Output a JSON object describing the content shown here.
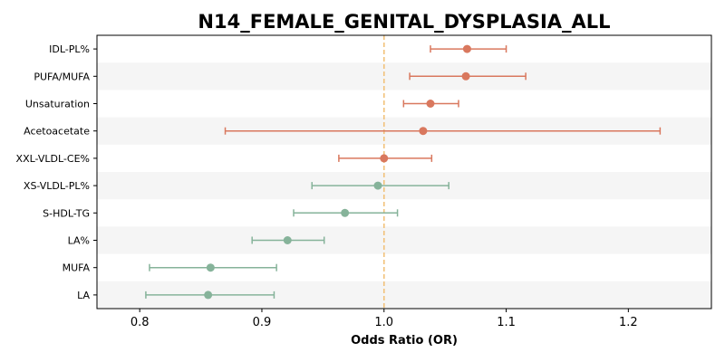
{
  "chart_data": {
    "type": "forest",
    "title": "N14_FEMALE_GENITAL_DYSPLASIA_ALL",
    "xlabel": "Odds Ratio (OR)",
    "ylabel": "",
    "xlim": [
      0.765,
      1.268
    ],
    "xticks": [
      0.8,
      0.9,
      1.0,
      1.1,
      1.2
    ],
    "xtick_labels": [
      "0.8",
      "0.9",
      "1.0",
      "1.1",
      "1.2"
    ],
    "reference_line": 1.0,
    "colors": {
      "above_one": "#d9785e",
      "below_one": "#86b39a",
      "reference": "#f2c27a",
      "band": "#f5f5f5"
    },
    "rows": [
      {
        "label": "IDL-PL%",
        "or": 1.068,
        "ci_low": 1.038,
        "ci_high": 1.1
      },
      {
        "label": "PUFA/MUFA",
        "or": 1.067,
        "ci_low": 1.021,
        "ci_high": 1.116
      },
      {
        "label": "Unsaturation",
        "or": 1.038,
        "ci_low": 1.016,
        "ci_high": 1.061
      },
      {
        "label": "Acetoacetate",
        "or": 1.032,
        "ci_low": 0.87,
        "ci_high": 1.226
      },
      {
        "label": "XXL-VLDL-CE%",
        "or": 1.0,
        "ci_low": 0.963,
        "ci_high": 1.039
      },
      {
        "label": "XS-VLDL-PL%",
        "or": 0.995,
        "ci_low": 0.941,
        "ci_high": 1.053
      },
      {
        "label": "S-HDL-TG",
        "or": 0.968,
        "ci_low": 0.926,
        "ci_high": 1.011
      },
      {
        "label": "LA%",
        "or": 0.921,
        "ci_low": 0.892,
        "ci_high": 0.951
      },
      {
        "label": "MUFA",
        "or": 0.858,
        "ci_low": 0.808,
        "ci_high": 0.912
      },
      {
        "label": "LA",
        "or": 0.856,
        "ci_low": 0.805,
        "ci_high": 0.91
      }
    ]
  }
}
